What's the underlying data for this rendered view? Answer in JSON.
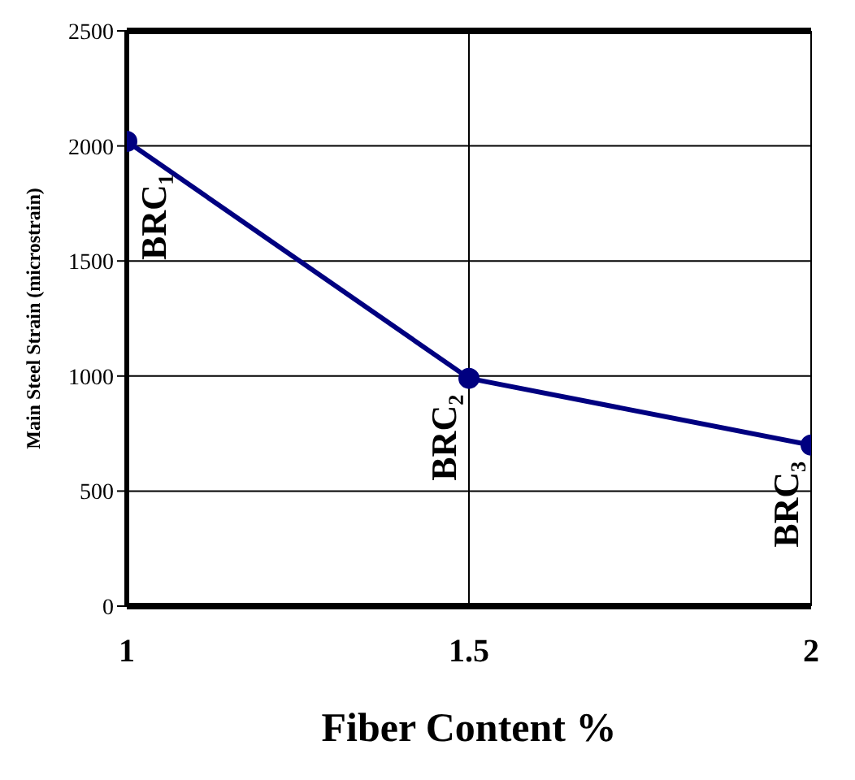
{
  "chart_data": {
    "type": "line",
    "xlabel": "Fiber Content %",
    "ylabel": "Main Steel Strain (microstrain)",
    "x": [
      1,
      1.5,
      2
    ],
    "series": [
      {
        "color": "#000080",
        "values": [
          2020,
          990,
          700
        ]
      }
    ],
    "xlim": [
      1,
      2
    ],
    "xticks": [
      1,
      1.5,
      2
    ],
    "ylim": [
      0,
      2500
    ],
    "yticks": [
      0,
      500,
      1000,
      1500,
      2000,
      2500
    ],
    "grid": true,
    "marker": "circle",
    "line_style": "solid",
    "annotations": [
      {
        "text": "BRC₁",
        "x": 1,
        "y": 2020
      },
      {
        "text": "BRC₂",
        "x": 1.5,
        "y": 990
      },
      {
        "text": "BRC₃",
        "x": 2,
        "y": 700
      }
    ]
  }
}
